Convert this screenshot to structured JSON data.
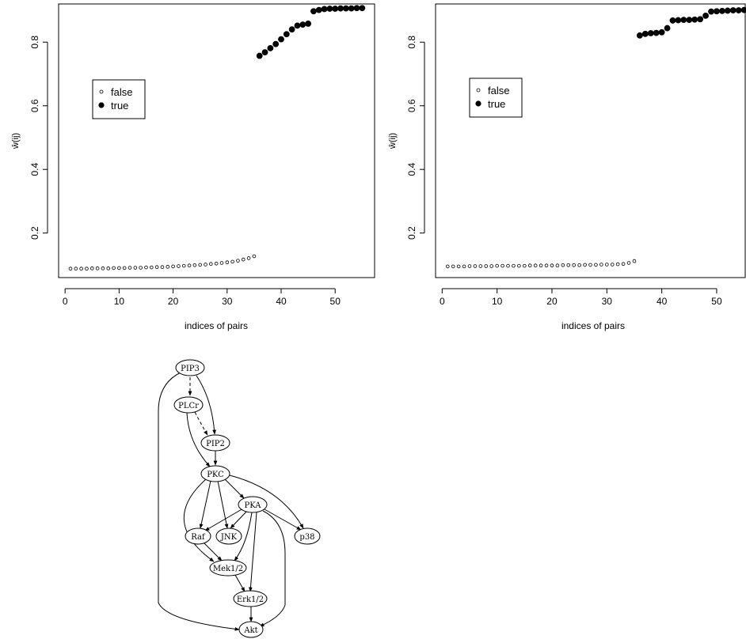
{
  "chart_data": [
    {
      "type": "scatter",
      "xlabel": "indices of pairs",
      "ylabel": "ŵ(ij)",
      "xticks": [
        0,
        10,
        20,
        30,
        40,
        50
      ],
      "yticks": [
        0.2,
        0.4,
        0.6,
        0.8
      ],
      "xlim": [
        -1.2,
        57.3
      ],
      "ylim": [
        0.06,
        0.92
      ],
      "legend": {
        "position": "top-left",
        "entries": [
          "false",
          "true"
        ]
      },
      "series": [
        {
          "name": "false",
          "marker": "open-circle",
          "x": [
            1,
            2,
            3,
            4,
            5,
            6,
            7,
            8,
            9,
            10,
            11,
            12,
            13,
            14,
            15,
            16,
            17,
            18,
            19,
            20,
            21,
            22,
            23,
            24,
            25,
            26,
            27,
            28,
            29,
            30,
            31,
            32,
            33,
            34,
            35
          ],
          "y": [
            0.088,
            0.088,
            0.088,
            0.088,
            0.089,
            0.089,
            0.089,
            0.089,
            0.09,
            0.09,
            0.09,
            0.091,
            0.091,
            0.091,
            0.092,
            0.092,
            0.093,
            0.093,
            0.094,
            0.095,
            0.096,
            0.097,
            0.098,
            0.099,
            0.1,
            0.101,
            0.103,
            0.104,
            0.106,
            0.108,
            0.11,
            0.113,
            0.117,
            0.121,
            0.127
          ]
        },
        {
          "name": "true",
          "marker": "filled-circle",
          "x": [
            36,
            37,
            38,
            39,
            40,
            41,
            42,
            43,
            44,
            45,
            46,
            47,
            48,
            49,
            50,
            51,
            52,
            53,
            54,
            55
          ],
          "y": [
            0.757,
            0.768,
            0.781,
            0.794,
            0.809,
            0.825,
            0.84,
            0.852,
            0.855,
            0.858,
            0.897,
            0.901,
            0.904,
            0.905,
            0.905,
            0.906,
            0.906,
            0.906,
            0.907,
            0.907
          ]
        }
      ]
    },
    {
      "type": "scatter",
      "xlabel": "indices of pairs",
      "ylabel": "ŵ(ij)",
      "xticks": [
        0,
        10,
        20,
        30,
        40,
        50
      ],
      "yticks": [
        0.2,
        0.4,
        0.6,
        0.8
      ],
      "xlim": [
        -1.2,
        55.2
      ],
      "ylim": [
        0.06,
        0.92
      ],
      "legend": {
        "position": "top-left",
        "entries": [
          "false",
          "true"
        ]
      },
      "series": [
        {
          "name": "false",
          "marker": "open-circle",
          "x": [
            1,
            2,
            3,
            4,
            5,
            6,
            7,
            8,
            9,
            10,
            11,
            12,
            13,
            14,
            15,
            16,
            17,
            18,
            19,
            20,
            21,
            22,
            23,
            24,
            25,
            26,
            27,
            28,
            29,
            30,
            31,
            32,
            33,
            34,
            35
          ],
          "y": [
            0.095,
            0.095,
            0.095,
            0.095,
            0.096,
            0.096,
            0.096,
            0.096,
            0.096,
            0.097,
            0.097,
            0.097,
            0.097,
            0.097,
            0.097,
            0.098,
            0.098,
            0.098,
            0.098,
            0.098,
            0.098,
            0.099,
            0.099,
            0.099,
            0.099,
            0.1,
            0.1,
            0.1,
            0.101,
            0.101,
            0.101,
            0.102,
            0.103,
            0.106,
            0.112
          ]
        },
        {
          "name": "true",
          "marker": "filled-circle",
          "x": [
            36,
            37,
            38,
            39,
            40,
            41,
            42,
            43,
            44,
            45,
            46,
            47,
            48,
            49,
            50,
            51,
            52,
            53,
            54,
            55
          ],
          "y": [
            0.821,
            0.826,
            0.828,
            0.829,
            0.831,
            0.844,
            0.868,
            0.869,
            0.87,
            0.87,
            0.871,
            0.872,
            0.883,
            0.896,
            0.897,
            0.898,
            0.899,
            0.9,
            0.9,
            0.901
          ]
        }
      ]
    }
  ],
  "diagram": {
    "nodes": [
      "PIP3",
      "PLCr",
      "PIP2",
      "PKC",
      "PKA",
      "Raf",
      "JNK",
      "p38",
      "Mek1/2",
      "Erk1/2",
      "Akt"
    ],
    "edges": [
      [
        "PIP3",
        "PLCr"
      ],
      [
        "PLCr",
        "PIP2"
      ],
      [
        "PIP3",
        "PIP2"
      ],
      [
        "PIP2",
        "PKC"
      ],
      [
        "PLCr",
        "PKC"
      ],
      [
        "PKC",
        "PKA"
      ],
      [
        "PKC",
        "Raf"
      ],
      [
        "PKC",
        "JNK"
      ],
      [
        "PKC",
        "p38"
      ],
      [
        "PKC",
        "Mek1/2"
      ],
      [
        "PKA",
        "Raf"
      ],
      [
        "PKA",
        "JNK"
      ],
      [
        "PKA",
        "p38"
      ],
      [
        "PKA",
        "Mek1/2"
      ],
      [
        "PKA",
        "Erk1/2"
      ],
      [
        "PKA",
        "Akt"
      ],
      [
        "Raf",
        "Mek1/2"
      ],
      [
        "Mek1/2",
        "Erk1/2"
      ],
      [
        "Erk1/2",
        "Akt"
      ],
      [
        "PIP3",
        "Akt"
      ]
    ]
  }
}
